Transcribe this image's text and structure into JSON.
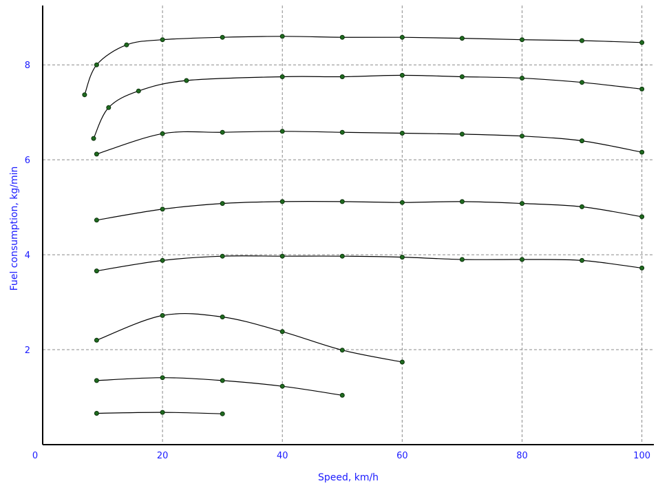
{
  "chart_data": {
    "type": "line",
    "title": "",
    "xlabel": "Speed, km/h",
    "ylabel": "Fuel consumption, kg/min",
    "xlim": [
      0,
      102
    ],
    "ylim": [
      0,
      9.25
    ],
    "xticks": [
      0,
      20,
      40,
      60,
      80,
      100
    ],
    "yticks": [
      2,
      4,
      6,
      8
    ],
    "grid": true,
    "colors": {
      "line": "#000000",
      "marker": "#1f6b1f",
      "label": "#1a1aff",
      "grid": "#888888"
    },
    "series": [
      {
        "x": [
          7,
          9,
          14,
          20,
          30,
          40,
          50,
          60,
          70,
          80,
          90,
          100
        ],
        "y": [
          7.37,
          8.0,
          8.42,
          8.53,
          8.58,
          8.6,
          8.58,
          8.58,
          8.56,
          8.53,
          8.51,
          8.47
        ]
      },
      {
        "x": [
          8.5,
          11,
          16,
          24,
          40,
          50,
          60,
          70,
          80,
          90,
          100
        ],
        "y": [
          6.45,
          7.1,
          7.45,
          7.67,
          7.75,
          7.75,
          7.78,
          7.75,
          7.72,
          7.63,
          7.49
        ]
      },
      {
        "x": [
          9,
          20,
          30,
          40,
          50,
          60,
          70,
          80,
          90,
          100
        ],
        "y": [
          6.12,
          6.55,
          6.58,
          6.6,
          6.58,
          6.56,
          6.54,
          6.5,
          6.4,
          6.16
        ]
      },
      {
        "x": [
          9,
          20,
          30,
          40,
          50,
          60,
          70,
          80,
          90,
          100
        ],
        "y": [
          4.73,
          4.96,
          5.08,
          5.12,
          5.12,
          5.1,
          5.12,
          5.08,
          5.01,
          4.8
        ]
      },
      {
        "x": [
          9,
          20,
          30,
          40,
          50,
          60,
          70,
          80,
          90,
          100
        ],
        "y": [
          3.66,
          3.88,
          3.97,
          3.97,
          3.97,
          3.95,
          3.9,
          3.9,
          3.88,
          3.72
        ]
      },
      {
        "x": [
          9,
          20,
          30,
          40,
          50,
          60
        ],
        "y": [
          2.2,
          2.72,
          2.69,
          2.38,
          1.99,
          1.74
        ]
      },
      {
        "x": [
          9,
          20,
          30,
          40,
          50
        ],
        "y": [
          1.35,
          1.41,
          1.35,
          1.23,
          1.04
        ]
      },
      {
        "x": [
          9,
          20,
          30
        ],
        "y": [
          0.66,
          0.68,
          0.65
        ]
      }
    ]
  }
}
